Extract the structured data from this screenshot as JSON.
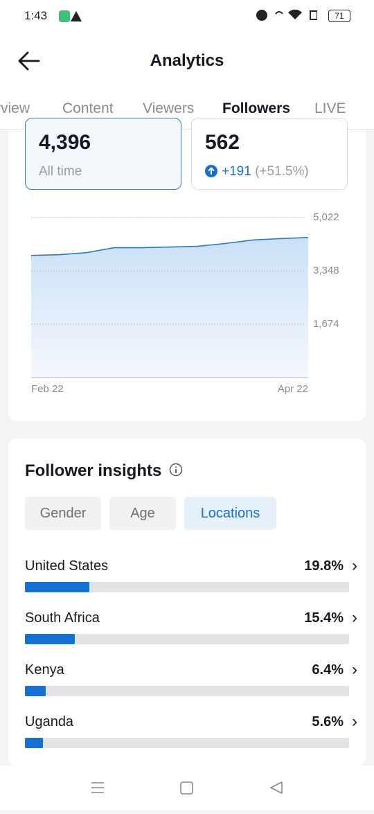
{
  "status": {
    "time": "1:43",
    "battery": "71"
  },
  "header": {
    "title": "Analytics"
  },
  "tabs": [
    "rview",
    "Content",
    "Viewers",
    "Followers",
    "LIVE"
  ],
  "active_tab": 3,
  "cards": [
    {
      "value": "4,396",
      "caption": "All time"
    },
    {
      "value": "562",
      "change": "+191",
      "change_pct": "(+51.5%)"
    }
  ],
  "chart_data": {
    "type": "area",
    "categories": [
      "Feb 22",
      null,
      null,
      null,
      null,
      null,
      null,
      null,
      null,
      null,
      "Apr 22"
    ],
    "values": [
      3833,
      3855,
      3921,
      4075,
      4075,
      4097,
      4119,
      4207,
      4317,
      4361,
      4396
    ],
    "color": "#2a78c8",
    "ylim": [
      0,
      5022
    ],
    "yticks": [
      {
        "value": 1674,
        "label": "1,674"
      },
      {
        "value": 3348,
        "label": "3,348"
      },
      {
        "value": 5022,
        "label": "5,022"
      }
    ],
    "grid": true
  },
  "insights": {
    "title": "Follower insights",
    "filters": [
      "Gender",
      "Age",
      "Locations"
    ],
    "active_filter": 2,
    "locations": [
      {
        "name": "United States",
        "value": 19.8,
        "label": "19.8%"
      },
      {
        "name": "South Africa",
        "value": 15.4,
        "label": "15.4%"
      },
      {
        "name": "Kenya",
        "value": 6.4,
        "label": "6.4%"
      },
      {
        "name": "Uganda",
        "value": 5.6,
        "label": "5.6%"
      }
    ]
  }
}
